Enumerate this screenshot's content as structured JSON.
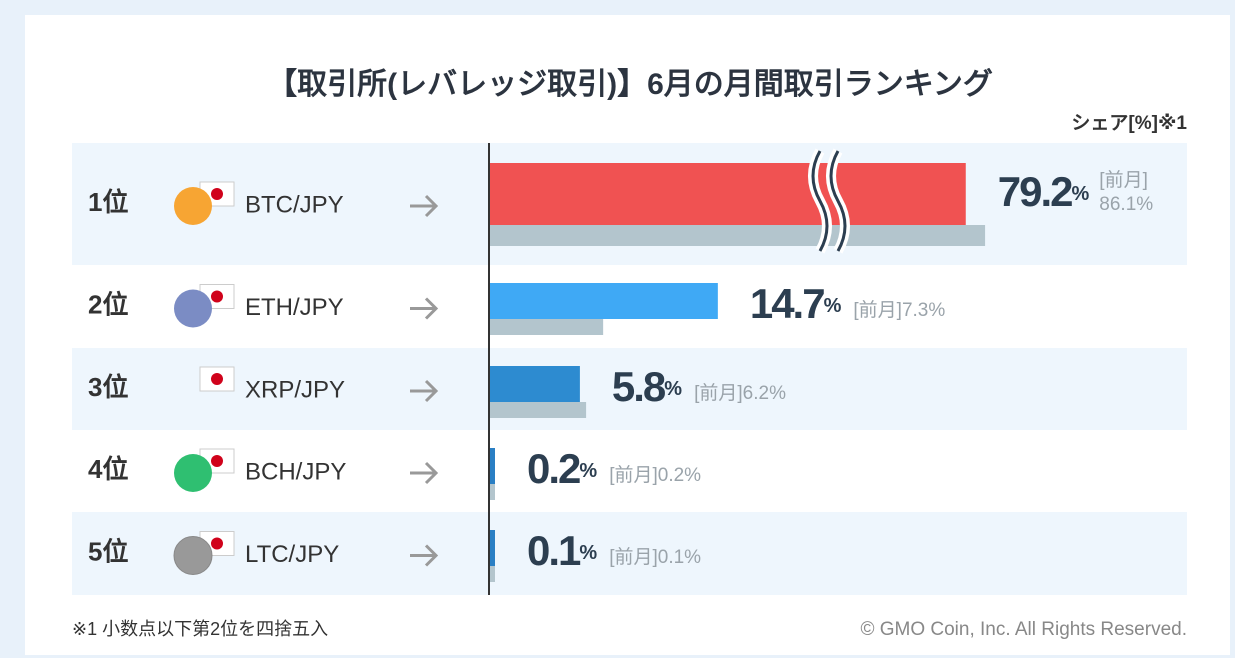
{
  "chart_data": {
    "type": "bar",
    "title": "【取引所(レバレッジ取引)】6月の月間取引ランキング",
    "axis_label": "シェア[%]※1",
    "ranks": [
      "1位",
      "2位",
      "3位",
      "4位",
      "5位"
    ],
    "categories": [
      "BTC/JPY",
      "ETH/JPY",
      "XRP/JPY",
      "BCH/JPY",
      "LTC/JPY"
    ],
    "unit": "%",
    "prev_label": "[前月]",
    "series": [
      {
        "name": "6月",
        "colors": [
          "#f05252",
          "#3fa9f5",
          "#2d8bd0",
          "#2a7fc4",
          "#2a7fc4"
        ],
        "values": [
          79.2,
          14.7,
          5.8,
          0.2,
          0.1
        ]
      },
      {
        "name": "前月",
        "color": "#b3c5cd",
        "values": [
          86.1,
          7.3,
          6.2,
          0.2,
          0.1
        ]
      }
    ],
    "highlight_color": "#f05252",
    "footnote": "※1 小数点以下第2位を四捨五入",
    "copyright": "© GMO Coin, Inc. All Rights Reserved."
  }
}
